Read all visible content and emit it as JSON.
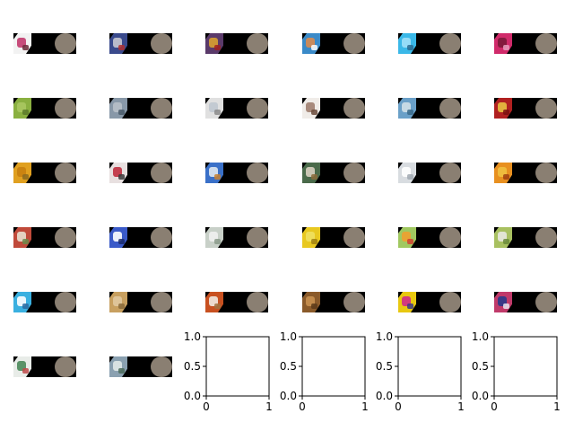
{
  "figure": {
    "image_grid": {
      "rows": 6,
      "cols": 6,
      "tiles": [
        {
          "colors": [
            "#f2f2f2",
            "#c23a6e",
            "#6b2a3a"
          ]
        },
        {
          "colors": [
            "#3a4a8c",
            "#c8c8d0",
            "#b03030"
          ]
        },
        {
          "colors": [
            "#5a3a6a",
            "#d8a030",
            "#a02020"
          ]
        },
        {
          "colors": [
            "#3a8ac8",
            "#d88a50",
            "#ffffff"
          ]
        },
        {
          "colors": [
            "#3ab8e8",
            "#a0e0f8",
            "#2a6a90"
          ]
        },
        {
          "colors": [
            "#d02a6a",
            "#7a1a3a",
            "#e8a0c0"
          ]
        },
        {
          "colors": [
            "#8ab040",
            "#a8c860",
            "#5a7a2a"
          ]
        },
        {
          "colors": [
            "#8898a8",
            "#b8c0c8",
            "#4a5a6a"
          ]
        },
        {
          "colors": [
            "#e0e0e0",
            "#c0c8d0",
            "#8a8a8a"
          ]
        },
        {
          "colors": [
            "#f0ece8",
            "#a08070",
            "#6a4a3a"
          ]
        },
        {
          "colors": [
            "#6aa0c8",
            "#d0e0e8",
            "#3a6a8a"
          ]
        },
        {
          "colors": [
            "#b02020",
            "#e8c040",
            "#7a1010"
          ]
        },
        {
          "colors": [
            "#e0a020",
            "#c88010",
            "#8a6a20"
          ]
        },
        {
          "colors": [
            "#e8e0e0",
            "#c03040",
            "#3a3a3a"
          ]
        },
        {
          "colors": [
            "#3a70c8",
            "#e0e8f0",
            "#c88030"
          ]
        },
        {
          "colors": [
            "#4a6a4a",
            "#d8d0c0",
            "#8a6a3a"
          ]
        },
        {
          "colors": [
            "#d8dce0",
            "#ffffff",
            "#a0a8b0"
          ]
        },
        {
          "colors": [
            "#e89020",
            "#f0c040",
            "#a04010"
          ]
        },
        {
          "colors": [
            "#c04a3a",
            "#e8e0d0",
            "#6a8a4a"
          ]
        },
        {
          "colors": [
            "#3a5ac8",
            "#ffffff",
            "#1a2a6a"
          ]
        },
        {
          "colors": [
            "#c8d0c8",
            "#f0f0f0",
            "#8a9a8a"
          ]
        },
        {
          "colors": [
            "#e8c820",
            "#f0e060",
            "#a08010"
          ]
        },
        {
          "colors": [
            "#a0c860",
            "#f0a030",
            "#d04030"
          ]
        },
        {
          "colors": [
            "#a8c060",
            "#e8e8e0",
            "#6a8a3a"
          ]
        },
        {
          "colors": [
            "#3ab0e0",
            "#ffffff",
            "#2a6aa0"
          ]
        },
        {
          "colors": [
            "#c8a060",
            "#e0c8a0",
            "#8a6a3a"
          ]
        },
        {
          "colors": [
            "#c85020",
            "#f0e8e0",
            "#a07040"
          ]
        },
        {
          "colors": [
            "#8a5a2a",
            "#c89050",
            "#5a3a1a"
          ]
        },
        {
          "colors": [
            "#e8c810",
            "#d02a8a",
            "#3a3a8a"
          ]
        },
        {
          "colors": [
            "#c03a6a",
            "#2a3a8a",
            "#e8e8f0"
          ]
        },
        {
          "colors": [
            "#e8ece8",
            "#4a8a5a",
            "#c04a4a"
          ]
        },
        {
          "colors": [
            "#8aa0b0",
            "#e0e8e8",
            "#4a6a5a"
          ]
        }
      ],
      "disc_color": "#8a7f72"
    },
    "empty_axes": [
      {
        "xlim": [
          0,
          1
        ],
        "ylim": [
          0,
          1
        ],
        "xticks": [
          "0",
          "1"
        ],
        "yticks": [
          "0.0",
          "0.5",
          "1.0"
        ]
      },
      {
        "xlim": [
          0,
          1
        ],
        "ylim": [
          0,
          1
        ],
        "xticks": [
          "0",
          "1"
        ],
        "yticks": [
          "0.0",
          "0.5",
          "1.0"
        ]
      },
      {
        "xlim": [
          0,
          1
        ],
        "ylim": [
          0,
          1
        ],
        "xticks": [
          "0",
          "1"
        ],
        "yticks": [
          "0.0",
          "0.5",
          "1.0"
        ]
      },
      {
        "xlim": [
          0,
          1
        ],
        "ylim": [
          0,
          1
        ],
        "xticks": [
          "0",
          "1"
        ],
        "yticks": [
          "0.0",
          "0.5",
          "1.0"
        ]
      }
    ]
  },
  "chart_data": [
    {
      "type": "scatter",
      "title": "",
      "xlabel": "",
      "ylabel": "",
      "xlim": [
        0,
        1
      ],
      "ylim": [
        0,
        1
      ],
      "series": [],
      "grid": false
    },
    {
      "type": "scatter",
      "title": "",
      "xlabel": "",
      "ylabel": "",
      "xlim": [
        0,
        1
      ],
      "ylim": [
        0,
        1
      ],
      "series": [],
      "grid": false
    },
    {
      "type": "scatter",
      "title": "",
      "xlabel": "",
      "ylabel": "",
      "xlim": [
        0,
        1
      ],
      "ylim": [
        0,
        1
      ],
      "series": [],
      "grid": false
    },
    {
      "type": "scatter",
      "title": "",
      "xlabel": "",
      "ylabel": "",
      "xlim": [
        0,
        1
      ],
      "ylim": [
        0,
        1
      ],
      "series": [],
      "grid": false
    }
  ]
}
